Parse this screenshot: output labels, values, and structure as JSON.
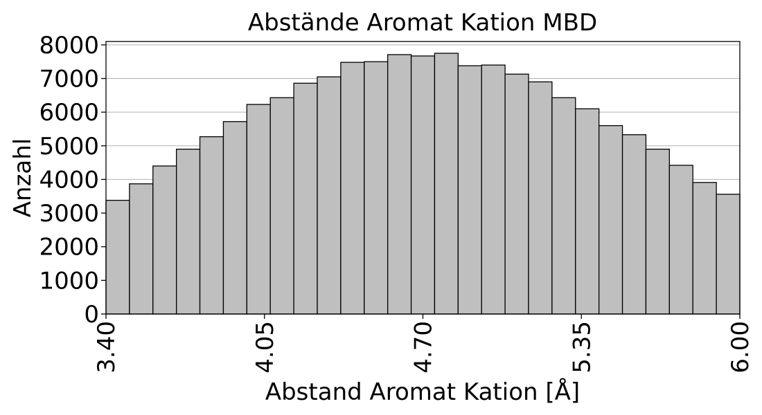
{
  "chart_data": {
    "type": "bar",
    "title": "Abstände Aromat Kation MBD",
    "xlabel": "Abstand Aromat Kation [Å]",
    "ylabel": "Anzahl",
    "xlim": [
      3.4,
      6.0
    ],
    "ylim": [
      0,
      8100
    ],
    "grid": "horizontal",
    "x_ticks": [
      "3.40",
      "4.05",
      "4.70",
      "5.35",
      "6.00"
    ],
    "x_tick_values": [
      3.4,
      4.05,
      4.7,
      5.35,
      6.0
    ],
    "y_ticks": [
      "0",
      "1000",
      "2000",
      "3000",
      "4000",
      "5000",
      "6000",
      "7000",
      "8000"
    ],
    "y_tick_values": [
      0,
      1000,
      2000,
      3000,
      4000,
      5000,
      6000,
      7000,
      8000
    ],
    "bin_edges": [
      3.4,
      3.4963,
      3.5926,
      3.6889,
      3.7852,
      3.8815,
      3.9778,
      4.0741,
      4.1704,
      4.2667,
      4.363,
      4.4593,
      4.5556,
      4.6519,
      4.7481,
      4.8444,
      4.9407,
      5.037,
      5.1333,
      5.2296,
      5.3259,
      5.4222,
      5.5185,
      5.6148,
      5.7111,
      5.8074,
      5.9037,
      6.0
    ],
    "values": [
      3380,
      3870,
      4400,
      4900,
      5270,
      5720,
      6230,
      6430,
      6860,
      7050,
      7480,
      7500,
      7710,
      7670,
      7750,
      7380,
      7400,
      7130,
      6900,
      6430,
      6100,
      5600,
      5330,
      4900,
      4420,
      3910,
      3560
    ]
  }
}
